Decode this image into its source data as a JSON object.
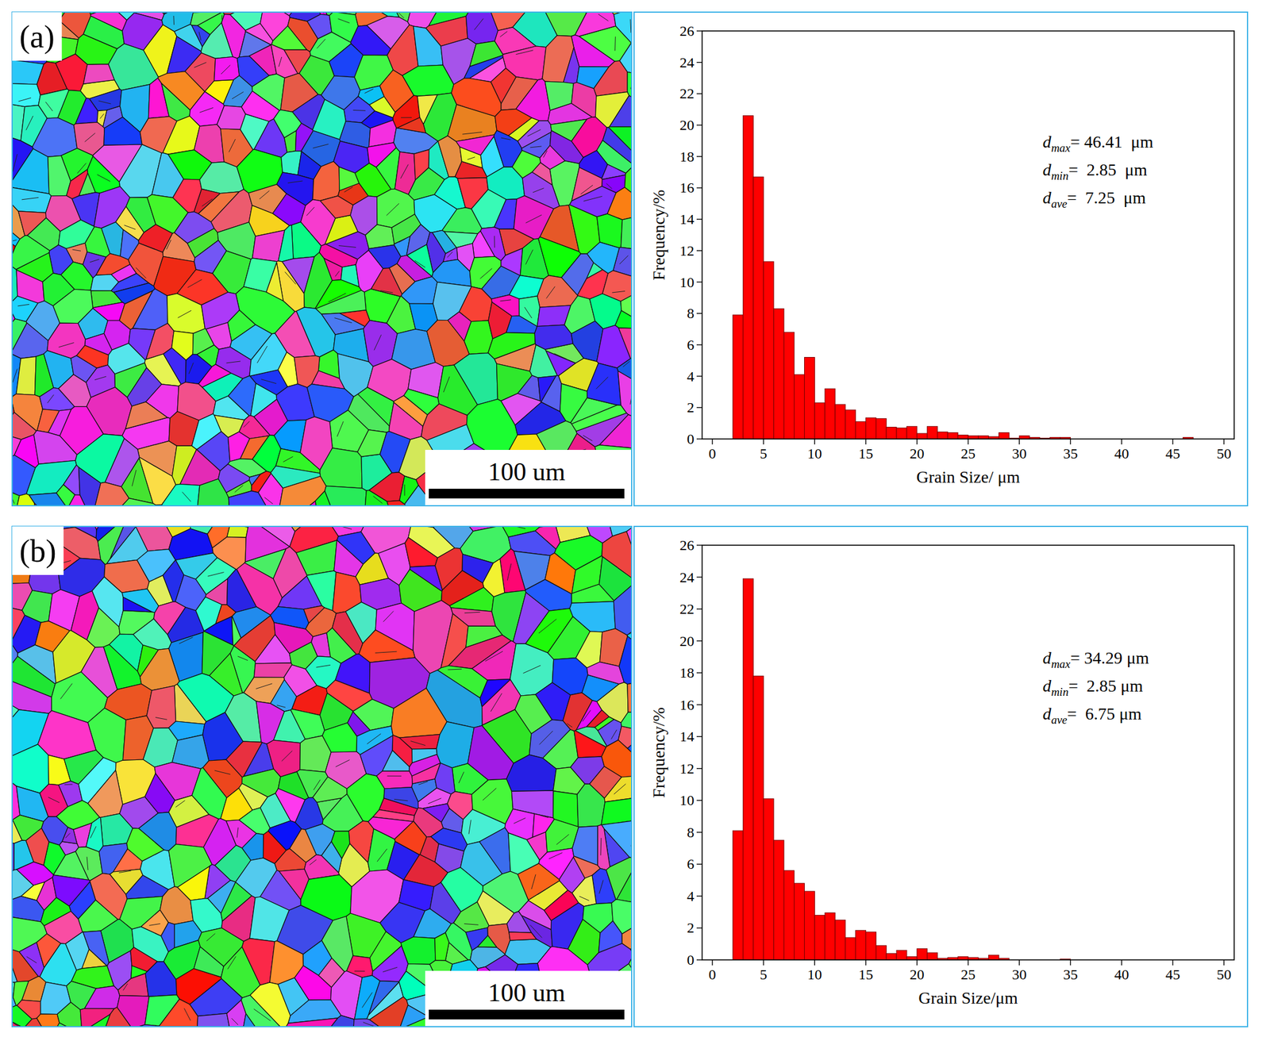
{
  "chart_data": [
    {
      "type": "histogram",
      "x_label": "Grain Size/ μm",
      "y_label": "Frequency/%",
      "bins": [
        2,
        3,
        4,
        5,
        6,
        7,
        8,
        9,
        10,
        11,
        12,
        13,
        14,
        15,
        16,
        17,
        18,
        19,
        20,
        21,
        22,
        23,
        24,
        25,
        26,
        27,
        28,
        29,
        30,
        31,
        32,
        33,
        34,
        35,
        36,
        37,
        38,
        39,
        40,
        41,
        42,
        43,
        44,
        45,
        46,
        47
      ],
      "values": [
        7.9,
        20.6,
        16.7,
        11.3,
        8.3,
        6.8,
        4.1,
        5.2,
        2.3,
        3.2,
        2.2,
        1.85,
        1.1,
        1.35,
        1.3,
        0.75,
        0.7,
        0.8,
        0.35,
        0.8,
        0.45,
        0.4,
        0.25,
        0.2,
        0.2,
        0.15,
        0.4,
        0.05,
        0.2,
        0.1,
        0.05,
        0.1,
        0.1,
        0,
        0,
        0,
        0,
        0,
        0,
        0,
        0,
        0,
        0,
        0,
        0.1
      ],
      "color": "#ff0000",
      "xlim": [
        -1,
        51
      ],
      "ylim": [
        0,
        26
      ],
      "xticks": [
        0,
        5,
        10,
        15,
        20,
        25,
        30,
        35,
        40,
        45,
        50
      ],
      "yticks": [
        0,
        2,
        4,
        6,
        8,
        10,
        12,
        14,
        16,
        18,
        20,
        22,
        24,
        26
      ],
      "annotations": [
        {
          "var": "d",
          "sub": "max",
          "text": "= 46.41  μm"
        },
        {
          "var": "d",
          "sub": "min",
          "text": "=  2.85  μm"
        },
        {
          "var": "d",
          "sub": "ave",
          "text": "=  7.25  μm"
        }
      ]
    },
    {
      "type": "histogram",
      "x_label": "Grain Size/μm",
      "y_label": "Frequency/%",
      "bins": [
        2,
        3,
        4,
        5,
        6,
        7,
        8,
        9,
        10,
        11,
        12,
        13,
        14,
        15,
        16,
        17,
        18,
        19,
        20,
        21,
        22,
        23,
        24,
        25,
        26,
        27,
        28,
        29,
        30,
        31,
        32,
        33,
        34,
        35
      ],
      "values": [
        8.1,
        23.9,
        17.8,
        10.1,
        7.5,
        5.6,
        4.8,
        4.3,
        2.8,
        2.95,
        2.5,
        1.4,
        1.85,
        1.75,
        0.9,
        0.4,
        0.6,
        0.2,
        0.7,
        0.45,
        0.1,
        0.15,
        0.2,
        0.15,
        0.1,
        0.3,
        0.1,
        0,
        0,
        0,
        0,
        0,
        0.05
      ],
      "color": "#ff0000",
      "xlim": [
        -1,
        51
      ],
      "ylim": [
        0,
        26
      ],
      "xticks": [
        0,
        5,
        10,
        15,
        20,
        25,
        30,
        35,
        40,
        45,
        50
      ],
      "yticks": [
        0,
        2,
        4,
        6,
        8,
        10,
        12,
        14,
        16,
        18,
        20,
        22,
        24,
        26
      ],
      "annotations": [
        {
          "var": "d",
          "sub": "max",
          "text": "= 34.29 μm"
        },
        {
          "var": "d",
          "sub": "min",
          "text": "=  2.85 μm"
        },
        {
          "var": "d",
          "sub": "ave",
          "text": "=  6.75 μm"
        }
      ]
    }
  ],
  "maps": [
    {
      "label": "(a)",
      "scale_bar": "100 um"
    },
    {
      "label": "(b)",
      "scale_bar": "100 um"
    }
  ]
}
